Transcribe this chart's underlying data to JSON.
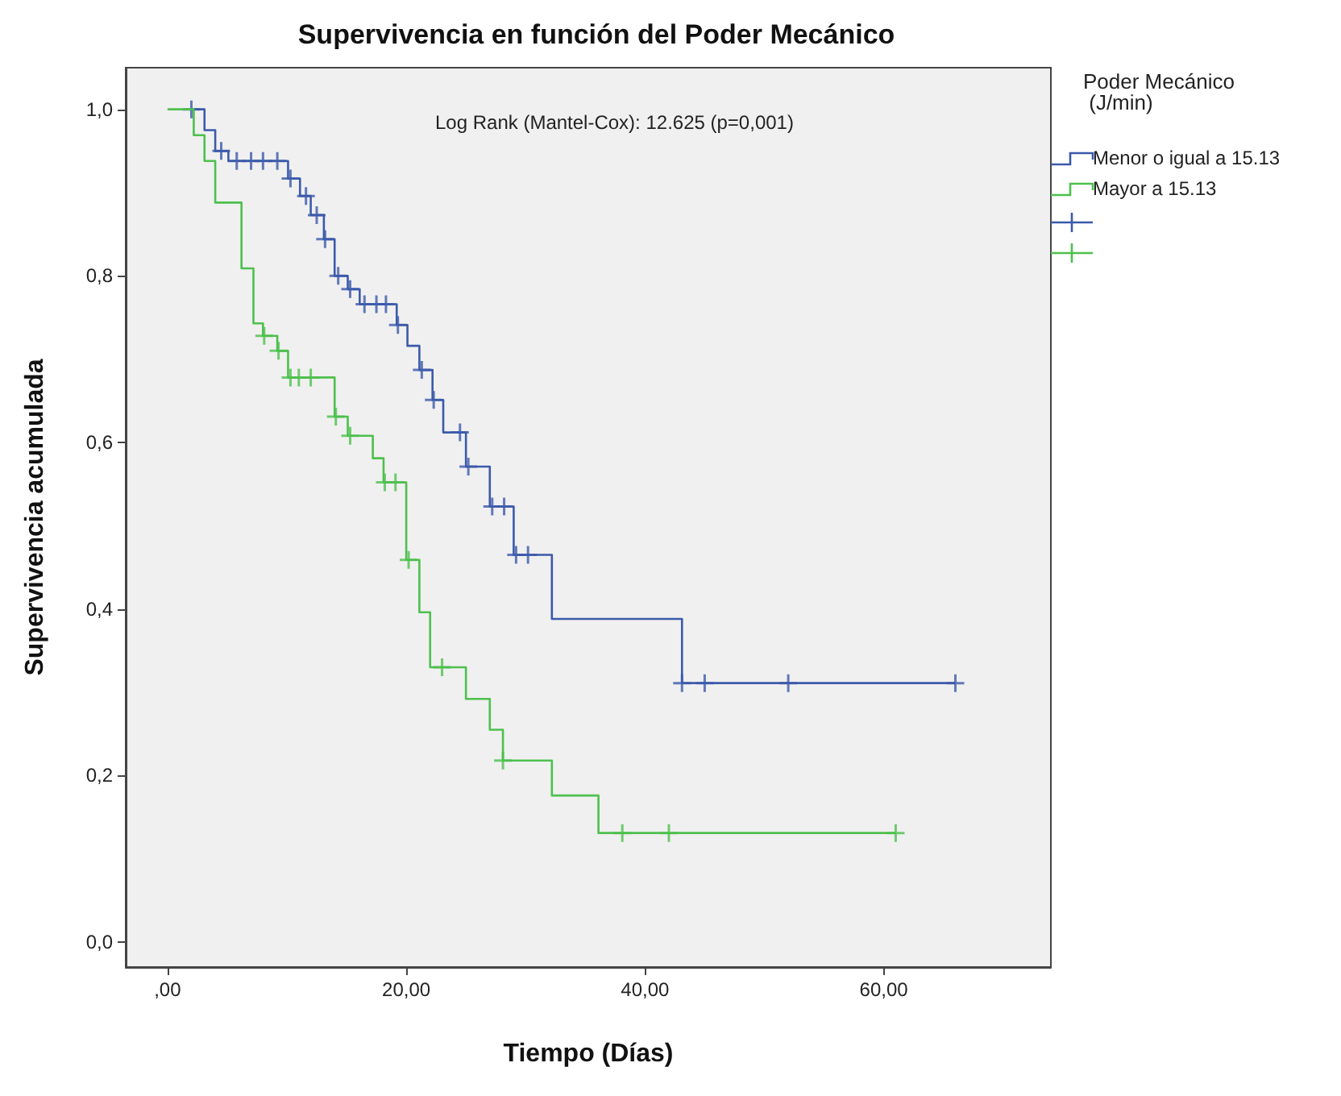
{
  "chart_data": {
    "type": "step",
    "title": "Supervivencia en función del Poder Mecánico",
    "xlabel": "Tiempo (Días)",
    "ylabel": "Supervivencia acumulada",
    "legend_title": "Poder Mecánico (J/min)",
    "legend": "right",
    "grid": false,
    "annotations": [
      "Log Rank (Mantel-Cox): 12.625 (p=0,001)"
    ],
    "xlim": [
      -3.5,
      74
    ],
    "xticks": [
      {
        "value": 0,
        "label": ",00"
      },
      {
        "value": 20,
        "label": "20,00"
      },
      {
        "value": 40,
        "label": "40,00"
      },
      {
        "value": 60,
        "label": "60,00"
      }
    ],
    "ylim": [
      -0.03,
      1.05
    ],
    "yticks": [
      {
        "value": 0,
        "label": "0,0"
      },
      {
        "value": 0.2,
        "label": "0,2"
      },
      {
        "value": 0.4,
        "label": "0,4"
      },
      {
        "value": 0.6,
        "label": "0,6"
      },
      {
        "value": 0.8,
        "label": "0,8"
      },
      {
        "value": 1,
        "label": "1,0"
      }
    ],
    "series": [
      {
        "name": "Menor o igual a 15.13",
        "color": "#3c5aab",
        "x": [
          2,
          3.1,
          4,
          5.1,
          10.1,
          11.1,
          12,
          13.1,
          14,
          15.1,
          16.1,
          19.2,
          20.1,
          21.1,
          22.2,
          23.1,
          25,
          27,
          29,
          32.2,
          43.1,
          66
        ],
        "values": [
          1.0,
          0.975,
          0.95,
          0.938,
          0.917,
          0.896,
          0.873,
          0.844,
          0.8,
          0.784,
          0.766,
          0.741,
          0.716,
          0.687,
          0.651,
          0.612,
          0.571,
          0.523,
          0.465,
          0.388,
          0.311,
          0.311
        ]
      },
      {
        "name": "Mayor a 15.13",
        "color": "#4dc04d",
        "x": [
          0,
          2.2,
          3.1,
          4,
          6.2,
          7.2,
          8,
          9.2,
          10.1,
          14,
          15.1,
          17.2,
          18.1,
          20,
          21.1,
          22,
          25,
          27,
          28.1,
          32.2,
          36.1,
          61
        ],
        "values": [
          1.0,
          0.969,
          0.938,
          0.888,
          0.809,
          0.743,
          0.728,
          0.71,
          0.678,
          0.631,
          0.608,
          0.581,
          0.552,
          0.459,
          0.396,
          0.33,
          0.292,
          0.255,
          0.218,
          0.176,
          0.131,
          0.131
        ]
      },
      {
        "type": "scatter",
        "marker": "cross",
        "color": "#3c5aab",
        "x": [
          2,
          4.5,
          5.8,
          7,
          8,
          9.2,
          10.3,
          11.6,
          12.5,
          13.2,
          14.3,
          15.3,
          16.5,
          17.5,
          18.3,
          19.3,
          21.3,
          22.3,
          24.5,
          25.2,
          27.2,
          28.2,
          29.2,
          30.2,
          43.1,
          45,
          52,
          66
        ],
        "values": [
          1.0,
          0.95,
          0.938,
          0.938,
          0.938,
          0.938,
          0.917,
          0.896,
          0.873,
          0.844,
          0.8,
          0.784,
          0.766,
          0.766,
          0.766,
          0.741,
          0.687,
          0.651,
          0.612,
          0.571,
          0.523,
          0.523,
          0.465,
          0.465,
          0.311,
          0.311,
          0.311,
          0.311
        ]
      },
      {
        "type": "scatter",
        "marker": "cross",
        "color": "#4dc04d",
        "x": [
          8.1,
          9.3,
          10.3,
          11,
          12,
          14.1,
          15.3,
          18.2,
          19.1,
          20.2,
          23,
          28.1,
          38.1,
          42,
          61
        ],
        "values": [
          0.728,
          0.71,
          0.678,
          0.678,
          0.678,
          0.631,
          0.608,
          0.552,
          0.552,
          0.459,
          0.33,
          0.218,
          0.131,
          0.131,
          0.131
        ]
      }
    ]
  }
}
